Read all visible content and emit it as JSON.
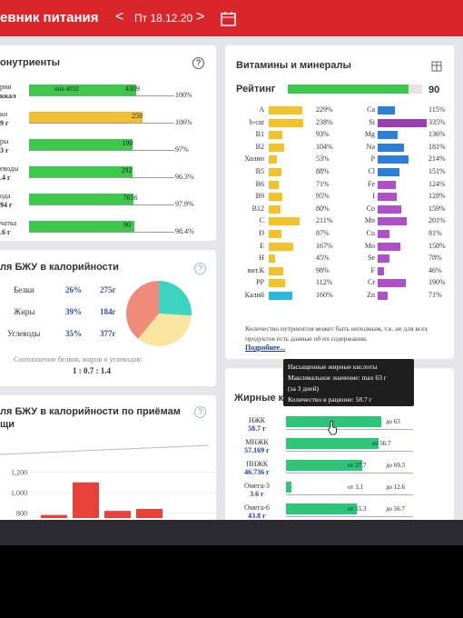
{
  "header": {
    "title": "евник питания",
    "prev": "<",
    "date": "Пт 18.12.20",
    "next": ">"
  },
  "macros": {
    "title": "онутриенты",
    "help": "?",
    "rows": [
      {
        "name": "рии",
        "sub": "ккал",
        "min": "min 4032",
        "value": 4309,
        "percent": {
          "value": 100,
          "label": "100%"
        },
        "color": "#3cc84a"
      },
      {
        "name": "ки",
        "sub": "9 г",
        "value": 259,
        "percent": {
          "value": 106,
          "label": "106%"
        },
        "color": "#f0c030"
      },
      {
        "name": "ры",
        "sub": "3 г",
        "value": 190,
        "percent": {
          "value": 97,
          "label": "97%"
        },
        "color": "#3cc84a"
      },
      {
        "name": "еводы",
        "sub": ".4 г",
        "value": 292,
        "percent": {
          "value": 96.3,
          "label": "96.3%"
        },
        "color": "#3cc84a"
      },
      {
        "name": "ода",
        "sub": "94 г",
        "value": 7656,
        "percent": {
          "value": 97.9,
          "label": "97.9%"
        },
        "color": "#3cc84a"
      },
      {
        "name": "чатка",
        "sub": ".6 г",
        "value": 90,
        "percent": {
          "value": 98.4,
          "label": "98.4%"
        },
        "color": "#3cc84a"
      }
    ]
  },
  "bju": {
    "title": "ля БЖУ в калорийности",
    "help": "?",
    "rows": [
      {
        "name": "Белки",
        "share": {
          "value": 26,
          "label": "26%"
        },
        "grams": "275г",
        "color": "#3cd3c0"
      },
      {
        "name": "Жиры",
        "share": {
          "value": 39,
          "label": "39%"
        },
        "grams": "184г",
        "color": "#f08a7a"
      },
      {
        "name": "Углеводы",
        "share": {
          "value": 35,
          "label": "35%"
        },
        "grams": "377г",
        "color": "#f8e6a0"
      }
    ],
    "caption": "Соотношение белков, жиров и углеводов:",
    "ratio": "1 : 0.7 : 1.4"
  },
  "meals": {
    "title": "ля БЖУ в калорийности по приёмам",
    "title2": "щи",
    "help": "?",
    "chart": {
      "type": "bar",
      "ylim": [
        750,
        1330
      ],
      "yticks": [
        {
          "value": 1200,
          "label": "1,200"
        },
        {
          "value": 1000,
          "label": "1,000"
        },
        {
          "value": 800,
          "label": "800"
        }
      ],
      "values": [
        780,
        1100,
        820,
        840
      ],
      "color": "#e8413a"
    }
  },
  "vitamins": {
    "title": "Витамины и минералы",
    "rating": {
      "label": "Рейтинг",
      "value": 90
    },
    "left": [
      {
        "name": "A",
        "value": 229,
        "label": "229%",
        "color": "#f2c22c"
      },
      {
        "name": "b-car",
        "value": 238,
        "label": "238%",
        "color": "#f2c22c"
      },
      {
        "name": "B1",
        "value": 93,
        "label": "93%",
        "color": "#f2c22c"
      },
      {
        "name": "B2",
        "value": 104,
        "label": "104%",
        "color": "#f2c22c"
      },
      {
        "name": "Холин",
        "value": 53,
        "label": "53%",
        "color": "#f2c22c"
      },
      {
        "name": "B5",
        "value": 88,
        "label": "88%",
        "color": "#f2c22c"
      },
      {
        "name": "B6",
        "value": 71,
        "label": "71%",
        "color": "#f2c22c"
      },
      {
        "name": "B9",
        "value": 95,
        "label": "95%",
        "color": "#f2c22c"
      },
      {
        "name": "B12",
        "value": 80,
        "label": "80%",
        "color": "#f2c22c"
      },
      {
        "name": "C",
        "value": 211,
        "label": "211%",
        "color": "#f2c22c"
      },
      {
        "name": "D",
        "value": 87,
        "label": "87%",
        "color": "#f2c22c"
      },
      {
        "name": "E",
        "value": 167,
        "label": "167%",
        "color": "#f2c22c"
      },
      {
        "name": "H",
        "value": 45,
        "label": "45%",
        "color": "#f2c22c"
      },
      {
        "name": "вит.К",
        "value": 98,
        "label": "98%",
        "color": "#f2c22c"
      },
      {
        "name": "PP",
        "value": 112,
        "label": "112%",
        "color": "#f2c22c"
      },
      {
        "name": "Калий",
        "value": 160,
        "label": "160%",
        "color": "#2cb6e0"
      }
    ],
    "right": [
      {
        "name": "Ca",
        "value": 115,
        "label": "115%",
        "color": "#2f7fd8"
      },
      {
        "name": "Si",
        "value": 335,
        "label": "335%",
        "color": "#9a3fb0"
      },
      {
        "name": "Mg",
        "value": 136,
        "label": "136%",
        "color": "#2f7fd8"
      },
      {
        "name": "Na",
        "value": 181,
        "label": "181%",
        "color": "#2f7fd8"
      },
      {
        "name": "P",
        "value": 214,
        "label": "214%",
        "color": "#2f7fd8"
      },
      {
        "name": "Cl",
        "value": 151,
        "label": "151%",
        "color": "#2f7fd8"
      },
      {
        "name": "Fe",
        "value": 124,
        "label": "124%",
        "color": "#b050c8"
      },
      {
        "name": "I",
        "value": 128,
        "label": "128%",
        "color": "#b050c8"
      },
      {
        "name": "Co",
        "value": 159,
        "label": "159%",
        "color": "#b050c8"
      },
      {
        "name": "Mn",
        "value": 201,
        "label": "201%",
        "color": "#b050c8"
      },
      {
        "name": "Cu",
        "value": 81,
        "label": "81%",
        "color": "#b050c8"
      },
      {
        "name": "Mo",
        "value": 158,
        "label": "158%",
        "color": "#b050c8"
      },
      {
        "name": "Se",
        "value": 78,
        "label": "78%",
        "color": "#b050c8"
      },
      {
        "name": "F",
        "value": 46,
        "label": "46%",
        "color": "#b050c8"
      },
      {
        "name": "Cr",
        "value": 190,
        "label": "190%",
        "color": "#b050c8"
      },
      {
        "name": "Zn",
        "value": 71,
        "label": "71%",
        "color": "#b050c8"
      }
    ],
    "note": "Количество нутриентов может быть неполным, т.к. не для всех продуктов есть данные об их содержании.",
    "more": "Подробнее..."
  },
  "fats": {
    "title": "Жирные к",
    "tooltip": [
      "Насыщенные жирные кислоты",
      "Максимальное значение: max 63 г",
      "(за 3 дней)",
      "Количество в рационе: 58.7 г"
    ],
    "rows": [
      {
        "name": "НЖК",
        "amount": {
          "value": 58.7,
          "label": "58.7 г"
        },
        "to": "до 63"
      },
      {
        "name": "МНЖК",
        "amount": {
          "value": 57.169,
          "label": "57.169 г"
        },
        "from": "от 56.7"
      },
      {
        "name": "ПНЖК",
        "amount": {
          "value": 46.736,
          "label": "46.736 г"
        },
        "from": "от 27.7",
        "to": "до 69.3"
      },
      {
        "name": "Омега-3",
        "amount": {
          "value": 3.6,
          "label": "3.6 г"
        },
        "from": "от 3.1",
        "to": "до 12.6"
      },
      {
        "name": "Омега-6",
        "amount": {
          "value": 43.8,
          "label": "43.8 г"
        },
        "from": "от 15.3",
        "to": "до 56.7"
      }
    ]
  }
}
